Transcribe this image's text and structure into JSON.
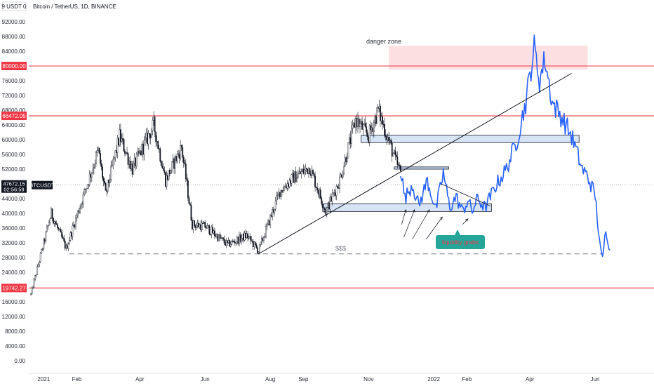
{
  "header": {
    "ticker_badge": "9 USDT 0",
    "symbol_title": "Bitcoin / TetherUS, 1D, BINANCE"
  },
  "colors": {
    "candle": "#131722",
    "projection": "#2962ff",
    "level_line": "#f23645",
    "zone_fill": "#d6e4f5",
    "zone_stroke": "#131722",
    "danger_fill": "#fbd9dc",
    "callout_fill": "#26a69a",
    "callout_text": "#f23645"
  },
  "chart_data": {
    "type": "candlestick",
    "symbol": "Bitcoin / TetherUS",
    "interval": "1D",
    "exchange": "BINANCE",
    "ylim": [
      0,
      94000
    ],
    "y_ticks": [
      0,
      4000,
      8000,
      12000,
      16000,
      20000,
      24000,
      28000,
      32000,
      36000,
      40000,
      44000,
      48000,
      52000,
      56000,
      60000,
      64000,
      68000,
      72000,
      76000,
      80000,
      84000,
      88000,
      92000
    ],
    "y_tick_labels": [
      "0.00",
      "4000.00",
      "8000.00",
      "12000.00",
      "16000.00",
      "20000.00",
      "24000.00",
      "28000.00",
      "32000.00",
      "36000.00",
      "40000.00",
      "44000.00",
      "48000.00",
      "52000.00",
      "56000.00",
      "60000.00",
      "64000.00",
      "68000.00",
      "72000.00",
      "76000.00",
      "80000.00",
      "84000.00",
      "88000.00",
      "92000.00"
    ],
    "x_range": [
      "2020-12-20",
      "2022-06-20"
    ],
    "x_ticks": [
      {
        "label": "2021",
        "date": "2021-01-01"
      },
      {
        "label": "Feb",
        "date": "2021-02-01"
      },
      {
        "label": "Apr",
        "date": "2021-04-01"
      },
      {
        "label": "Jun",
        "date": "2021-06-01"
      },
      {
        "label": "Aug",
        "date": "2021-08-01"
      },
      {
        "label": "Sep",
        "date": "2021-09-01"
      },
      {
        "label": "Nov",
        "date": "2021-11-01"
      },
      {
        "label": "2022",
        "date": "2022-01-01"
      },
      {
        "label": "Feb",
        "date": "2022-02-01"
      },
      {
        "label": "Apr",
        "date": "2022-04-01"
      },
      {
        "label": "Jun",
        "date": "2022-06-01"
      }
    ],
    "price_path": [
      {
        "date": "2020-12-20",
        "close": 18000
      },
      {
        "date": "2021-01-08",
        "close": 40000
      },
      {
        "date": "2021-01-22",
        "close": 30500
      },
      {
        "date": "2021-02-21",
        "close": 57000
      },
      {
        "date": "2021-02-28",
        "close": 45000
      },
      {
        "date": "2021-03-13",
        "close": 61000
      },
      {
        "date": "2021-03-25",
        "close": 52000
      },
      {
        "date": "2021-04-14",
        "close": 64000
      },
      {
        "date": "2021-04-25",
        "close": 49000
      },
      {
        "date": "2021-05-10",
        "close": 58000
      },
      {
        "date": "2021-05-20",
        "close": 37000
      },
      {
        "date": "2021-06-01",
        "close": 36500
      },
      {
        "date": "2021-06-22",
        "close": 31500
      },
      {
        "date": "2021-07-10",
        "close": 34000
      },
      {
        "date": "2021-07-21",
        "close": 29800
      },
      {
        "date": "2021-08-10",
        "close": 46000
      },
      {
        "date": "2021-08-22",
        "close": 49500
      },
      {
        "date": "2021-09-07",
        "close": 52500
      },
      {
        "date": "2021-09-22",
        "close": 40500
      },
      {
        "date": "2021-10-05",
        "close": 49000
      },
      {
        "date": "2021-10-20",
        "close": 65500
      },
      {
        "date": "2021-11-01",
        "close": 61000
      },
      {
        "date": "2021-11-10",
        "close": 68000
      },
      {
        "date": "2021-11-26",
        "close": 54500
      },
      {
        "date": "2021-12-05",
        "close": 48000
      },
      {
        "date": "2021-12-20",
        "close": 46500
      },
      {
        "date": "2022-01-10",
        "close": 41500
      },
      {
        "date": "2022-01-24",
        "close": 36500
      },
      {
        "date": "2022-02-08",
        "close": 44000
      },
      {
        "date": "2022-02-24",
        "close": 38000
      },
      {
        "date": "2022-03-10",
        "close": 39000
      },
      {
        "date": "2022-03-28",
        "close": 47500
      },
      {
        "date": "2022-04-10",
        "close": 42500
      },
      {
        "date": "2022-04-30",
        "close": 38500
      },
      {
        "date": "2022-05-12",
        "close": 29000
      },
      {
        "date": "2022-05-31",
        "close": 31800
      },
      {
        "date": "2022-06-13",
        "close": 22500
      },
      {
        "date": "2022-06-20",
        "close": 20500
      }
    ],
    "projection_path": [
      {
        "date": "2021-12-01",
        "value": 52000
      },
      {
        "date": "2021-12-05",
        "value": 44000
      },
      {
        "date": "2021-12-12",
        "value": 48000
      },
      {
        "date": "2021-12-18",
        "value": 42000
      },
      {
        "date": "2021-12-26",
        "value": 49000
      },
      {
        "date": "2022-01-03",
        "value": 41000
      },
      {
        "date": "2022-01-10",
        "value": 51000
      },
      {
        "date": "2022-01-16",
        "value": 41500
      },
      {
        "date": "2022-01-22",
        "value": 44500
      },
      {
        "date": "2022-01-28",
        "value": 40500
      },
      {
        "date": "2022-02-02",
        "value": 43500
      },
      {
        "date": "2022-02-06",
        "value": 40500
      },
      {
        "date": "2022-02-11",
        "value": 44000
      },
      {
        "date": "2022-02-18",
        "value": 41500
      },
      {
        "date": "2022-02-28",
        "value": 47500
      },
      {
        "date": "2022-03-10",
        "value": 52000
      },
      {
        "date": "2022-03-20",
        "value": 60000
      },
      {
        "date": "2022-03-28",
        "value": 70000
      },
      {
        "date": "2022-04-05",
        "value": 85000
      },
      {
        "date": "2022-04-10",
        "value": 76000
      },
      {
        "date": "2022-04-15",
        "value": 82000
      },
      {
        "date": "2022-04-22",
        "value": 70000
      },
      {
        "date": "2022-05-01",
        "value": 66000
      },
      {
        "date": "2022-05-10",
        "value": 61000
      },
      {
        "date": "2022-05-20",
        "value": 52000
      },
      {
        "date": "2022-05-25",
        "value": 50000
      },
      {
        "date": "2022-06-01",
        "value": 45000
      },
      {
        "date": "2022-06-06",
        "value": 30000
      },
      {
        "date": "2022-06-08",
        "value": 27500
      },
      {
        "date": "2022-06-11",
        "value": 36000
      },
      {
        "date": "2022-06-15",
        "value": 30000
      }
    ],
    "level_lines": [
      {
        "value": 80000,
        "label": "80000.00"
      },
      {
        "value": 66472.05,
        "label": "66472.05"
      },
      {
        "value": 19742.27,
        "label": "19742.27"
      }
    ],
    "current_price": {
      "value": 47672.15,
      "price_label": "47672.15",
      "countdown": "02:56:59",
      "symbol_label": "BTCUSDT"
    },
    "zones": [
      {
        "type": "resistance",
        "x_from": "2021-10-25",
        "x_to": "2022-05-17",
        "y_from": 59200,
        "y_to": 61200
      },
      {
        "type": "support",
        "x_from": "2021-09-20",
        "x_to": "2022-02-24",
        "y_from": 40500,
        "y_to": 42600
      },
      {
        "type": "range",
        "x_from": "2021-11-25",
        "x_to": "2022-01-15",
        "y_from": 52000,
        "y_to": 52600
      },
      {
        "type": "danger",
        "x_from": "2021-11-20",
        "x_to": "2022-05-25",
        "y_from": 79000,
        "y_to": 85500
      }
    ],
    "trendline": {
      "from": {
        "date": "2021-07-21",
        "value": 29000
      },
      "to": {
        "date": "2022-05-10",
        "value": 78000
      }
    },
    "dashed_level": {
      "value": 29000,
      "from": "2021-01-25",
      "to": "2022-06-07",
      "label": "$$$"
    },
    "small_trend": {
      "from": {
        "date": "2022-01-08",
        "value": 48000
      },
      "to": {
        "date": "2022-02-23",
        "value": 42000
      }
    },
    "arrows": [
      {
        "from": {
          "date": "2021-12-02",
          "value": 37000
        },
        "to": {
          "date": "2021-12-06",
          "value": 41000
        }
      },
      {
        "from": {
          "date": "2021-12-04",
          "value": 33500
        },
        "to": {
          "date": "2021-12-14",
          "value": 41000
        }
      },
      {
        "from": {
          "date": "2021-12-12",
          "value": 33000
        },
        "to": {
          "date": "2021-12-28",
          "value": 41000
        }
      },
      {
        "from": {
          "date": "2021-12-25",
          "value": 33000
        },
        "to": {
          "date": "2022-01-09",
          "value": 39000
        }
      },
      {
        "from": {
          "date": "2022-01-28",
          "value": 37000
        },
        "to": {
          "date": "2022-02-02",
          "value": 38500
        }
      }
    ],
    "annotations": {
      "danger_zone": "danger zone",
      "liquidity_grabs": "liquidity grabs",
      "dollars": "$$$"
    }
  }
}
